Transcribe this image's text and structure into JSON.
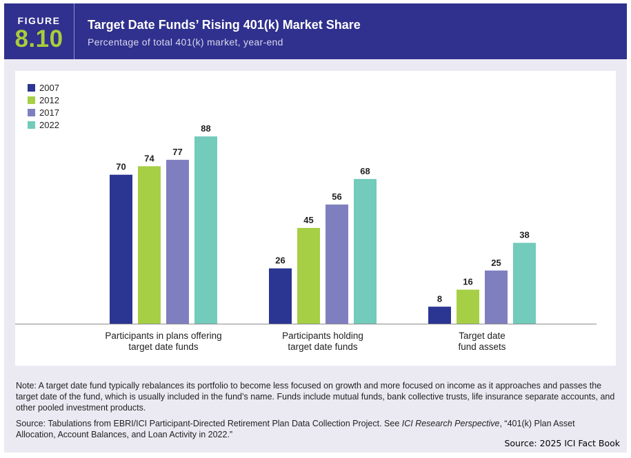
{
  "figure": {
    "label": "FIGURE",
    "number": "8.10",
    "title": "Target Date Funds’ Rising 401(k) Market Share",
    "subtitle": "Percentage of total 401(k) market, year-end"
  },
  "colors": {
    "header_bg": "#30308e",
    "figure_number": "#a9cd3a",
    "panel_bg": "#ebeaf3"
  },
  "chart_data": {
    "type": "bar",
    "categories": [
      [
        "Participants in plans offering",
        "target date funds"
      ],
      [
        "Participants holding",
        "target date funds"
      ],
      [
        "Target date",
        "fund assets"
      ]
    ],
    "series": [
      {
        "name": "2007",
        "color": "#2b3592",
        "values": [
          70,
          26,
          8
        ]
      },
      {
        "name": "2012",
        "color": "#a6cf45",
        "values": [
          74,
          45,
          16
        ]
      },
      {
        "name": "2017",
        "color": "#7f7fc0",
        "values": [
          77,
          56,
          25
        ]
      },
      {
        "name": "2022",
        "color": "#72cbbb",
        "values": [
          88,
          68,
          38
        ]
      }
    ],
    "title": "",
    "xlabel": "",
    "ylabel": "",
    "ylim": [
      0,
      100
    ],
    "grid": false,
    "legend_position": "top-left",
    "data_labels": true
  },
  "notes": {
    "note": "Note: A target date fund typically rebalances its portfolio to become less focused on growth and more focused on income as it approaches and passes the target date of the fund, which is usually included in the fund’s name. Funds include mutual funds, bank collective trusts, life insurance separate accounts, and other pooled investment products.",
    "source_prefix": "Source: Tabulations from EBRI/ICI Participant-Directed Retirement Plan Data Collection Project. See ",
    "source_italic": "ICI Research Perspective",
    "source_suffix": ", “401(k) Plan Asset Allocation, Account Balances, and Loan Activity in 2022.”",
    "credit": "Source: 2025 ICI Fact Book"
  }
}
